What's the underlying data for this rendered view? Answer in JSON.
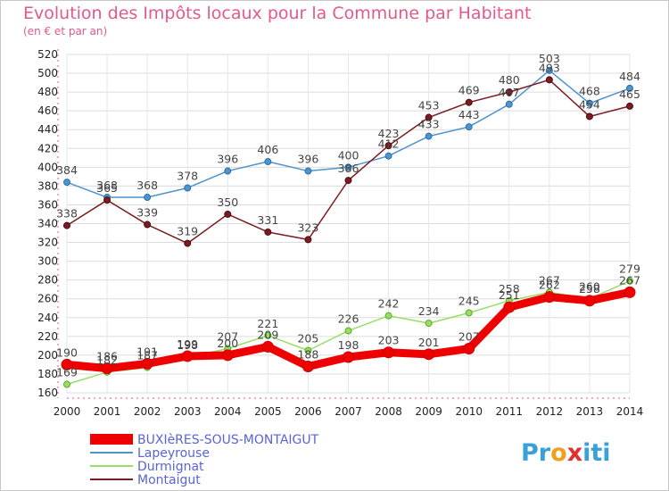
{
  "title": "Evolution des Impôts locaux pour la Commune par Habitant",
  "subtitle": "(en € et par an)",
  "logo": {
    "chars": [
      "P",
      "r",
      "o",
      "x",
      "i",
      "t",
      "i"
    ],
    "colors": [
      "#3aa0d8",
      "#3aa0d8",
      "#f0a020",
      "#e03030",
      "#3aa0d8",
      "#3aa0d8",
      "#3aa0d8"
    ]
  },
  "chart_data": {
    "type": "line",
    "x": [
      2000,
      2001,
      2002,
      2003,
      2004,
      2005,
      2006,
      2007,
      2008,
      2009,
      2010,
      2011,
      2012,
      2013,
      2014
    ],
    "ylim": [
      160,
      520
    ],
    "yticks": [
      160,
      180,
      200,
      220,
      240,
      260,
      280,
      300,
      320,
      340,
      360,
      380,
      400,
      420,
      440,
      460,
      480,
      500,
      520
    ],
    "grid": true,
    "legend_position": "bottom-left",
    "series": [
      {
        "name": "BUXIèRES-SOUS-MONTAIGUT",
        "color": "#ee0000",
        "values": [
          190,
          186,
          191,
          199,
          200,
          209,
          188,
          198,
          203,
          201,
          207,
          251,
          262,
          258,
          267
        ]
      },
      {
        "name": "Lapeyrouse",
        "color": "#4f93cc",
        "values": [
          384,
          368,
          368,
          378,
          396,
          406,
          396,
          400,
          412,
          433,
          443,
          467,
          503,
          468,
          484
        ]
      },
      {
        "name": "Durmignat",
        "color": "#99dd66",
        "values": [
          169,
          182,
          187,
          198,
          207,
          221,
          205,
          226,
          242,
          234,
          245,
          258,
          267,
          260,
          279
        ]
      },
      {
        "name": "Montaigut",
        "color": "#7a1c22",
        "values": [
          338,
          365,
          339,
          319,
          350,
          331,
          323,
          386,
          423,
          453,
          469,
          480,
          493,
          454,
          465
        ]
      }
    ]
  }
}
